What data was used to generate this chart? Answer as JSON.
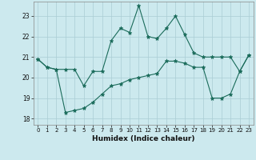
{
  "title": "",
  "xlabel": "Humidex (Indice chaleur)",
  "ylabel": "",
  "background_color": "#cce9ee",
  "line_color": "#1a6b5a",
  "grid_color": "#aacdd4",
  "xlim": [
    -0.5,
    23.5
  ],
  "ylim": [
    17.7,
    23.7
  ],
  "yticks": [
    18,
    19,
    20,
    21,
    22,
    23
  ],
  "xticks": [
    0,
    1,
    2,
    3,
    4,
    5,
    6,
    7,
    8,
    9,
    10,
    11,
    12,
    13,
    14,
    15,
    16,
    17,
    18,
    19,
    20,
    21,
    22,
    23
  ],
  "line1": [
    20.9,
    20.5,
    20.4,
    20.4,
    20.4,
    19.6,
    20.3,
    20.3,
    21.8,
    22.4,
    22.2,
    23.5,
    22.0,
    21.9,
    22.4,
    23.0,
    22.1,
    21.2,
    21.0,
    21.0,
    21.0,
    21.0,
    20.3,
    21.1
  ],
  "line2": [
    20.9,
    20.5,
    20.4,
    18.3,
    18.4,
    18.5,
    18.8,
    19.2,
    19.6,
    19.7,
    19.9,
    20.0,
    20.1,
    20.2,
    20.8,
    20.8,
    20.7,
    20.5,
    20.5,
    19.0,
    19.0,
    19.2,
    20.3,
    21.1
  ]
}
